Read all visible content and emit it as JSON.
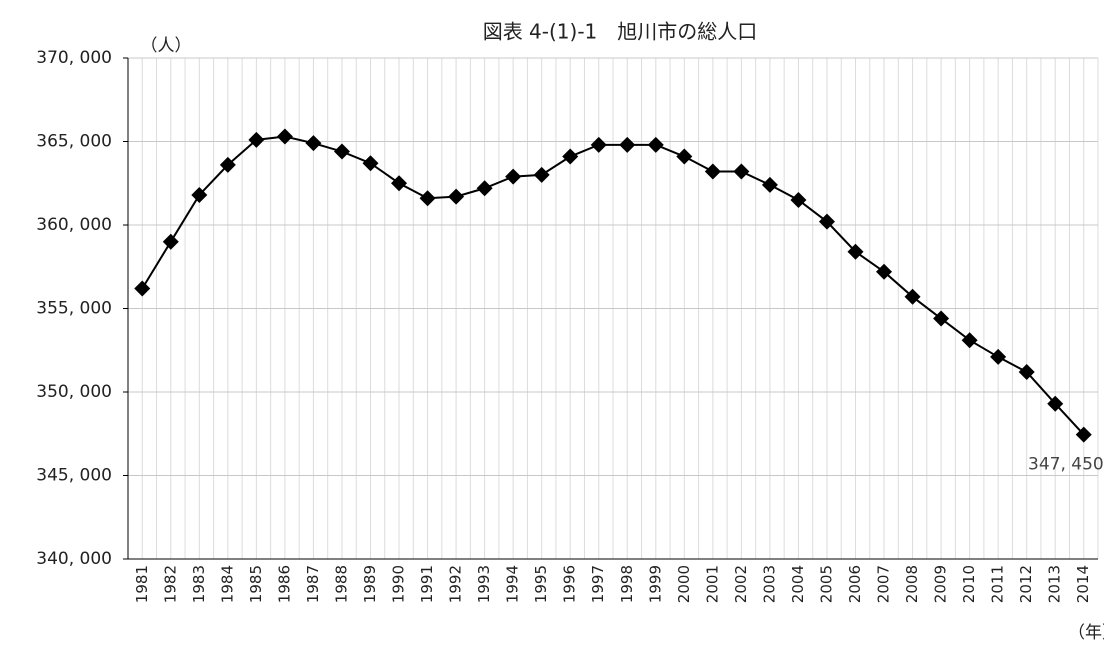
{
  "chart_data": {
    "type": "line",
    "title": "図表 4-(1)-1　旭川市の総人口",
    "y_label": "（人）",
    "x_label": "（年）",
    "categories": [
      "1981",
      "1982",
      "1983",
      "1984",
      "1985",
      "1986",
      "1987",
      "1988",
      "1989",
      "1990",
      "1991",
      "1992",
      "1993",
      "1994",
      "1995",
      "1996",
      "1997",
      "1998",
      "1999",
      "2000",
      "2001",
      "2002",
      "2003",
      "2004",
      "2005",
      "2006",
      "2007",
      "2008",
      "2009",
      "2010",
      "2011",
      "2012",
      "2013",
      "2014"
    ],
    "series": [
      {
        "color": "#000000",
        "values": [
          356200,
          359000,
          361800,
          363600,
          365100,
          365300,
          364900,
          364400,
          363700,
          362500,
          361600,
          361700,
          362200,
          362900,
          363000,
          364100,
          364800,
          364800,
          364800,
          364100,
          363200,
          363200,
          362400,
          361500,
          360200,
          358400,
          357200,
          355700,
          354400,
          353100,
          352100,
          351200,
          349300,
          347450
        ],
        "value_labels": [
          null,
          null,
          null,
          null,
          null,
          null,
          null,
          null,
          null,
          null,
          null,
          null,
          null,
          null,
          null,
          null,
          null,
          null,
          null,
          null,
          null,
          null,
          null,
          null,
          null,
          null,
          null,
          null,
          null,
          null,
          null,
          null,
          null,
          "347, 450"
        ]
      }
    ],
    "ylim": [
      340000,
      370000
    ],
    "yticks": [
      {
        "value": 340000,
        "label": "340, 000"
      },
      {
        "value": 345000,
        "label": "345, 000"
      },
      {
        "value": 350000,
        "label": "350, 000"
      },
      {
        "value": 355000,
        "label": "355, 000"
      },
      {
        "value": 360000,
        "label": "360, 000"
      },
      {
        "value": 365000,
        "label": "365, 000"
      },
      {
        "value": 370000,
        "label": "370, 000"
      }
    ],
    "grid": true
  }
}
